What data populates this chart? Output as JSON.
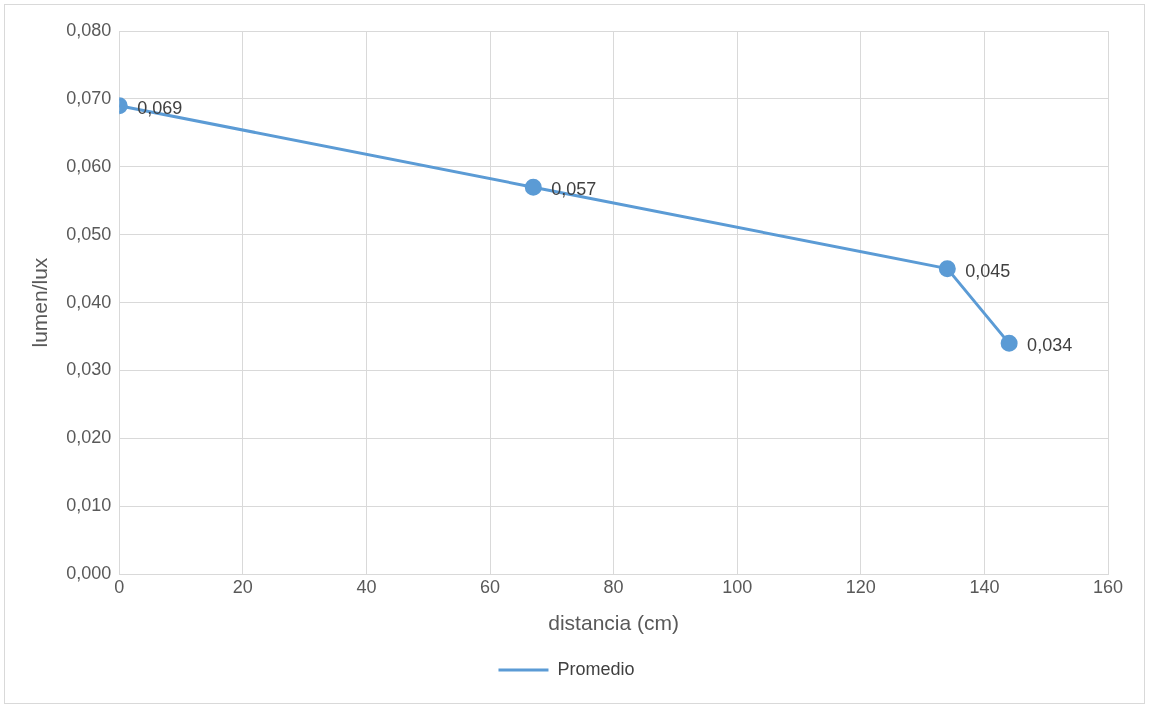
{
  "chart_data": {
    "type": "line",
    "xlabel": "distancia (cm)",
    "ylabel": "lumen/lux",
    "x": [
      0,
      67,
      134,
      144
    ],
    "series": [
      {
        "name": "Promedio",
        "color": "#5b9bd5",
        "values": [
          0.069,
          0.057,
          0.045,
          0.034
        ],
        "value_labels": [
          "0,069",
          "0,057",
          "0,045",
          "0,034"
        ]
      }
    ],
    "xlim": [
      0,
      160
    ],
    "xticks": [
      0,
      20,
      40,
      60,
      80,
      100,
      120,
      140,
      160
    ],
    "ylim": [
      0,
      0.08
    ],
    "yticks": [
      {
        "value": 0,
        "label": "0,000"
      },
      {
        "value": 0.01,
        "label": "0,010"
      },
      {
        "value": 0.02,
        "label": "0,020"
      },
      {
        "value": 0.03,
        "label": "0,030"
      },
      {
        "value": 0.04,
        "label": "0,040"
      },
      {
        "value": 0.05,
        "label": "0,050"
      },
      {
        "value": 0.06,
        "label": "0,060"
      },
      {
        "value": 0.07,
        "label": "0,070"
      },
      {
        "value": 0.08,
        "label": "0,080"
      }
    ],
    "grid": true,
    "legend": "bottom",
    "marker": "circle",
    "line_style": "solid"
  }
}
